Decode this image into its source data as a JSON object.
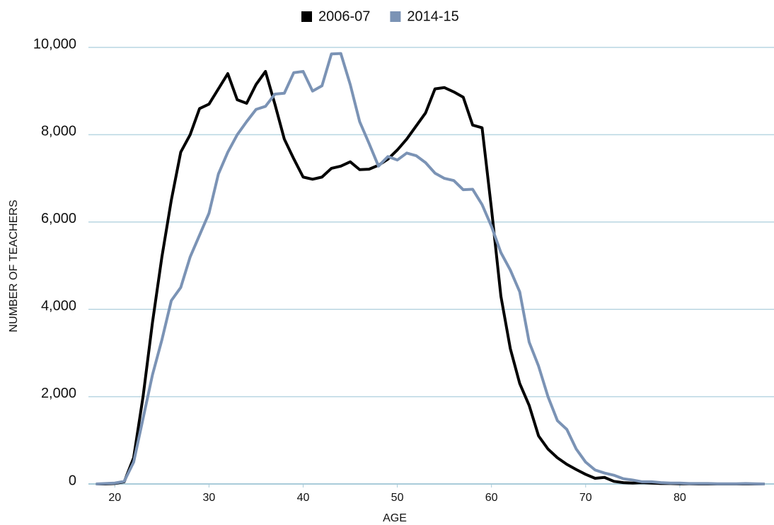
{
  "chart_data": {
    "type": "line",
    "x_label": "AGE",
    "y_label": "NUMBER OF TEACHERS",
    "x": [
      18,
      19,
      20,
      21,
      22,
      23,
      24,
      25,
      26,
      27,
      28,
      29,
      30,
      31,
      32,
      33,
      34,
      35,
      36,
      37,
      38,
      39,
      40,
      41,
      42,
      43,
      44,
      45,
      46,
      47,
      48,
      49,
      50,
      51,
      52,
      53,
      54,
      55,
      56,
      57,
      58,
      59,
      60,
      61,
      62,
      63,
      64,
      65,
      66,
      67,
      68,
      69,
      70,
      71,
      72,
      73,
      74,
      75,
      76,
      77,
      78,
      79,
      80,
      81,
      82,
      83,
      84,
      85,
      86,
      87,
      88,
      89
    ],
    "series": [
      {
        "name": "2006-07",
        "color": "#000000",
        "values": [
          0,
          0,
          10,
          50,
          600,
          2000,
          3700,
          5200,
          6500,
          7600,
          8000,
          8600,
          8700,
          9050,
          9400,
          8800,
          8720,
          9150,
          9450,
          8700,
          7900,
          7450,
          7030,
          6980,
          7030,
          7230,
          7280,
          7380,
          7200,
          7210,
          7300,
          7440,
          7650,
          7900,
          8200,
          8500,
          9050,
          9080,
          8980,
          8860,
          8220,
          8160,
          6300,
          4300,
          3100,
          2300,
          1800,
          1100,
          800,
          600,
          450,
          330,
          220,
          130,
          150,
          60,
          30,
          20,
          30,
          20,
          10,
          10,
          5,
          5,
          0,
          0,
          0,
          0,
          0,
          0,
          0,
          0
        ]
      },
      {
        "name": "2014-15",
        "color": "#7b93b5",
        "values": [
          0,
          10,
          20,
          60,
          500,
          1500,
          2500,
          3300,
          4200,
          4500,
          5200,
          5700,
          6200,
          7100,
          7600,
          8000,
          8300,
          8580,
          8650,
          8930,
          8950,
          9420,
          9450,
          9000,
          9120,
          9850,
          9860,
          9150,
          8300,
          7800,
          7280,
          7500,
          7420,
          7580,
          7520,
          7360,
          7120,
          7000,
          6950,
          6740,
          6750,
          6400,
          5900,
          5300,
          4900,
          4400,
          3250,
          2700,
          2000,
          1450,
          1250,
          800,
          500,
          320,
          250,
          200,
          120,
          90,
          50,
          50,
          30,
          20,
          20,
          10,
          10,
          10,
          5,
          5,
          5,
          10,
          5,
          0
        ]
      }
    ],
    "xlim": [
      17.2,
      90
    ],
    "xticks": [
      20,
      30,
      40,
      50,
      60,
      70,
      80
    ],
    "ylim": [
      0,
      10000
    ],
    "yticks": [
      0,
      {
        "value": 2000,
        "label": "2,000"
      },
      {
        "value": 4000,
        "label": "4,000"
      },
      {
        "value": 6000,
        "label": "6,000"
      },
      {
        "value": 8000,
        "label": "8,000"
      },
      {
        "value": 10000,
        "label": "10,000"
      }
    ],
    "grid": true,
    "legend": "top"
  }
}
